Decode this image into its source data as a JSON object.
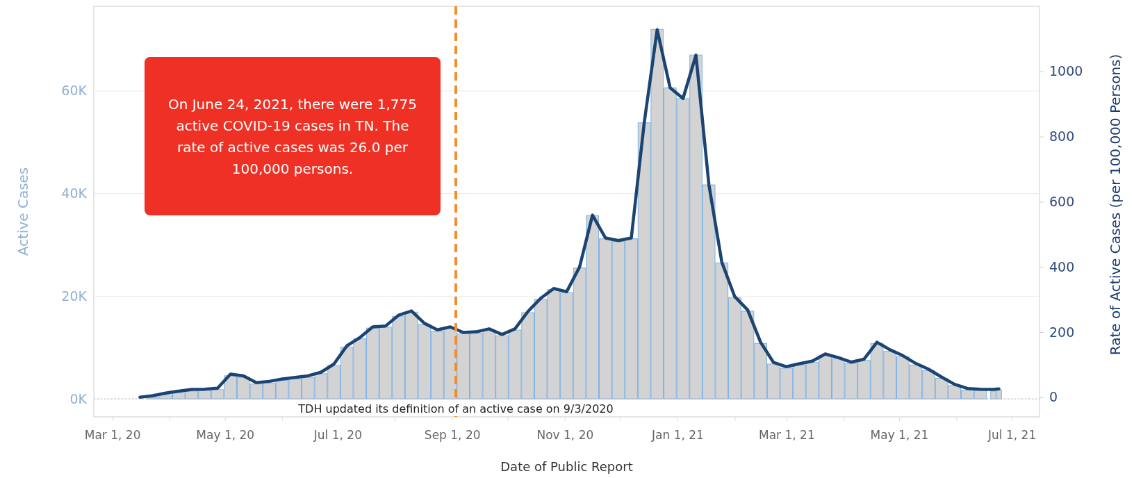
{
  "chart_data": {
    "type": "bar",
    "xlabel": "Date of Public Report",
    "ylabel": "Active Cases",
    "y2label": "Rate of Active Cases (per 100,000 Persons)",
    "x": [
      "2020-03-16",
      "2020-03-23",
      "2020-03-30",
      "2020-04-06",
      "2020-04-13",
      "2020-04-20",
      "2020-04-27",
      "2020-05-04",
      "2020-05-11",
      "2020-05-18",
      "2020-05-25",
      "2020-06-01",
      "2020-06-08",
      "2020-06-15",
      "2020-06-22",
      "2020-06-29",
      "2020-07-06",
      "2020-07-13",
      "2020-07-20",
      "2020-07-27",
      "2020-08-03",
      "2020-08-10",
      "2020-08-17",
      "2020-08-24",
      "2020-08-31",
      "2020-09-07",
      "2020-09-14",
      "2020-09-21",
      "2020-09-28",
      "2020-10-05",
      "2020-10-12",
      "2020-10-19",
      "2020-10-26",
      "2020-11-02",
      "2020-11-09",
      "2020-11-16",
      "2020-11-23",
      "2020-11-30",
      "2020-12-07",
      "2020-12-14",
      "2020-12-21",
      "2020-12-28",
      "2021-01-04",
      "2021-01-11",
      "2021-01-18",
      "2021-01-25",
      "2021-02-01",
      "2021-02-08",
      "2021-02-15",
      "2021-02-22",
      "2021-03-01",
      "2021-03-08",
      "2021-03-15",
      "2021-03-22",
      "2021-03-29",
      "2021-04-05",
      "2021-04-12",
      "2021-04-19",
      "2021-04-26",
      "2021-05-03",
      "2021-05-10",
      "2021-05-17",
      "2021-05-24",
      "2021-05-31",
      "2021-06-07",
      "2021-06-14",
      "2021-06-21",
      "2021-06-24"
    ],
    "series": [
      {
        "color": "#d3d3d3",
        "values": [
          0,
          300,
          800,
          1200,
          1500,
          1600,
          1800,
          4500,
          4200,
          2900,
          3100,
          3600,
          3900,
          4200,
          4900,
          6500,
          10100,
          11700,
          13800,
          14000,
          16100,
          16900,
          14500,
          13200,
          13800,
          12700,
          12800,
          13400,
          12300,
          13400,
          16800,
          19400,
          21300,
          20700,
          25500,
          35700,
          31200,
          30700,
          31200,
          53800,
          72000,
          60600,
          58500,
          67000,
          41700,
          26500,
          19700,
          17100,
          10800,
          6800,
          6000,
          6600,
          7100,
          8500,
          7800,
          6900,
          7500,
          10800,
          9300,
          8200,
          6600,
          5500,
          4000,
          2600,
          1700,
          1600,
          1500,
          1775
        ]
      },
      {
        "type": "line",
        "axis": "y2",
        "color": "#1c4472",
        "values": [
          0,
          5,
          13,
          19,
          24,
          25,
          28,
          71,
          66,
          45,
          49,
          56,
          61,
          66,
          77,
          102,
          158,
          183,
          216,
          219,
          252,
          265,
          227,
          207,
          216,
          199,
          201,
          210,
          193,
          210,
          263,
          304,
          334,
          324,
          400,
          559,
          489,
          481,
          489,
          843,
          1128,
          950,
          917,
          1050,
          653,
          415,
          309,
          268,
          169,
          107,
          94,
          103,
          111,
          133,
          122,
          108,
          117,
          169,
          146,
          128,
          104,
          86,
          62,
          40,
          27,
          25,
          24,
          26.0
        ]
      }
    ],
    "xlim": [
      "2020-02-20",
      "2021-07-16"
    ],
    "xticks": [
      {
        "value": "2020-03-01",
        "label": "Mar 1, 20"
      },
      {
        "value": "2020-04-01",
        "label": null
      },
      {
        "value": "2020-05-01",
        "label": "May 1, 20"
      },
      {
        "value": "2020-06-01",
        "label": null
      },
      {
        "value": "2020-07-01",
        "label": "Jul 1, 20"
      },
      {
        "value": "2020-08-01",
        "label": null
      },
      {
        "value": "2020-09-01",
        "label": "Sep 1, 20"
      },
      {
        "value": "2020-10-01",
        "label": null
      },
      {
        "value": "2020-11-01",
        "label": "Nov 1, 20"
      },
      {
        "value": "2020-12-01",
        "label": null
      },
      {
        "value": "2021-01-01",
        "label": "Jan 1, 21"
      },
      {
        "value": "2021-02-01",
        "label": null
      },
      {
        "value": "2021-03-01",
        "label": "Mar 1, 21"
      },
      {
        "value": "2021-04-01",
        "label": null
      },
      {
        "value": "2021-05-01",
        "label": "May 1, 21"
      },
      {
        "value": "2021-06-01",
        "label": null
      },
      {
        "value": "2021-07-01",
        "label": "Jul 1, 21"
      }
    ],
    "ylim": [
      -3500,
      76500
    ],
    "yticks": [
      {
        "value": 0,
        "label": "0K"
      },
      {
        "value": 20000,
        "label": "20K"
      },
      {
        "value": 40000,
        "label": "40K"
      },
      {
        "value": 60000,
        "label": "60K"
      }
    ],
    "y2lim": [
      -60,
      1200
    ],
    "y2ticks": [
      0,
      200,
      400,
      600,
      800,
      1000
    ],
    "grid": "y",
    "ref_lines": [
      {
        "axis": "x",
        "value": "2020-09-03",
        "label": "TDH updated its definition of an active case on 9/3/2020",
        "color": "#f28e2b",
        "line_style": "dashed"
      },
      {
        "axis": "y",
        "value": 0,
        "color": "#b8b8b8",
        "line_style": "dotted"
      }
    ],
    "annotations": [
      "On June 24, 2021, there were 1,775 active COVID-19 cases in TN. The rate of active cases was 26.0 per 100,000 persons."
    ]
  }
}
